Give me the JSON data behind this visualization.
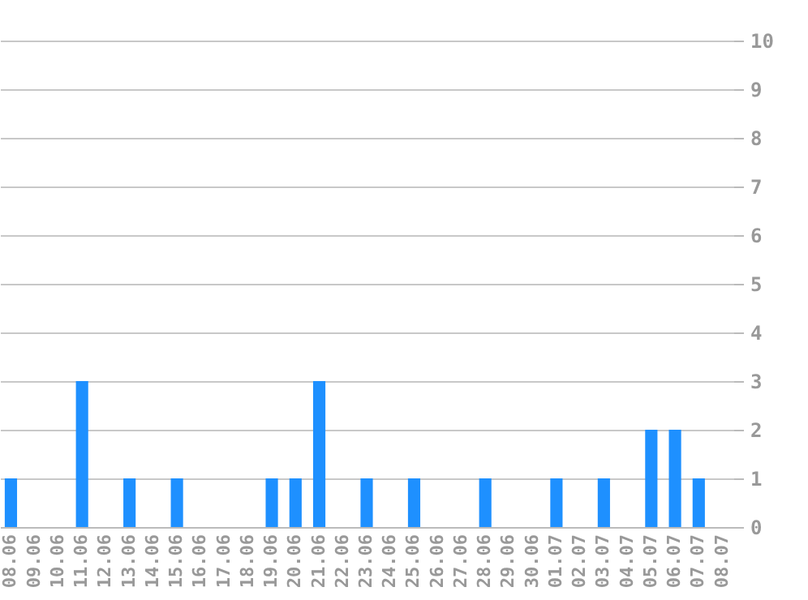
{
  "chart_data": {
    "type": "bar",
    "categories": [
      "08.06",
      "09.06",
      "10.06",
      "11.06",
      "12.06",
      "13.06",
      "14.06",
      "15.06",
      "16.06",
      "17.06",
      "18.06",
      "19.06",
      "20.06",
      "21.06",
      "22.06",
      "23.06",
      "24.06",
      "25.06",
      "26.06",
      "27.06",
      "28.06",
      "29.06",
      "30.06",
      "01.07",
      "02.07",
      "03.07",
      "04.07",
      "05.07",
      "06.07",
      "07.07",
      "08.07"
    ],
    "values": [
      1,
      0,
      0,
      3,
      0,
      1,
      0,
      1,
      0,
      0,
      0,
      1,
      1,
      3,
      0,
      1,
      0,
      1,
      0,
      0,
      1,
      0,
      0,
      1,
      0,
      1,
      0,
      2,
      2,
      1,
      0
    ],
    "color": "#1e90ff",
    "ylim": [
      0,
      10
    ],
    "yticks": [
      0,
      1,
      2,
      3,
      4,
      5,
      6,
      7,
      8,
      9,
      10
    ],
    "grid": "y"
  }
}
